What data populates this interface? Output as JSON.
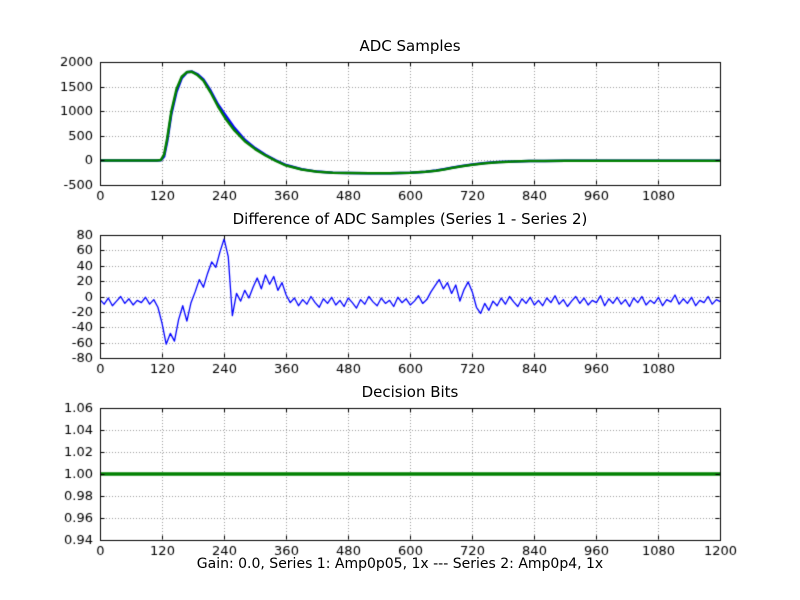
{
  "figure": {
    "caption": "Gain: 0.0, Series 1: Amp0p05, 1x --- Series 2: Amp0p4, 1x",
    "background": "#ffffff",
    "text_color": "#000000"
  },
  "chart_data": [
    {
      "type": "line",
      "title": "ADC Samples",
      "xlabel": "",
      "ylabel": "",
      "xlim": [
        0,
        1199
      ],
      "ylim": [
        -500,
        2000
      ],
      "xticks": [
        0,
        120,
        240,
        360,
        480,
        600,
        720,
        840,
        960,
        1080
      ],
      "xticklabels": [
        "0",
        "120",
        "240",
        "360",
        "480",
        "600",
        "720",
        "840",
        "960",
        "1080"
      ],
      "yticks": [
        -500,
        0,
        500,
        1000,
        1500,
        2000
      ],
      "yticklabels": [
        "-500",
        "0",
        "500",
        "1000",
        "1500",
        "2000"
      ],
      "grid": true,
      "grid_style": "dotted",
      "legend": false,
      "series": [
        {
          "name": "Series 1 (Amp0p05, 1x)",
          "color": "#0000ff",
          "linewidth": 2.5,
          "x": [
            0,
            40,
            80,
            110,
            118,
            124,
            130,
            138,
            148,
            158,
            168,
            178,
            188,
            200,
            214,
            228,
            244,
            260,
            280,
            300,
            320,
            340,
            360,
            390,
            420,
            450,
            480,
            520,
            560,
            600,
            630,
            650,
            665,
            680,
            700,
            720,
            745,
            770,
            800,
            830,
            860,
            900,
            960,
            1020,
            1080,
            1140,
            1199
          ],
          "y": [
            0,
            0,
            0,
            0,
            5,
            80,
            390,
            945,
            1395,
            1670,
            1790,
            1805,
            1755,
            1645,
            1415,
            1140,
            900,
            660,
            420,
            250,
            115,
            0,
            -95,
            -180,
            -228,
            -250,
            -258,
            -262,
            -260,
            -250,
            -230,
            -205,
            -178,
            -148,
            -112,
            -82,
            -52,
            -32,
            -20,
            -13,
            -10,
            -8,
            -8,
            -8,
            -8,
            -8,
            -8
          ]
        },
        {
          "name": "Series 2 (Amp0p4, 1x)",
          "color": "#008000",
          "linewidth": 2.5,
          "x": [
            0,
            40,
            80,
            110,
            118,
            124,
            130,
            138,
            148,
            158,
            168,
            178,
            188,
            200,
            214,
            228,
            244,
            260,
            280,
            300,
            320,
            340,
            360,
            390,
            420,
            450,
            480,
            520,
            560,
            600,
            630,
            650,
            665,
            680,
            700,
            720,
            745,
            770,
            800,
            830,
            860,
            900,
            960,
            1020,
            1080,
            1140,
            1199
          ],
          "y": [
            0,
            0,
            0,
            0,
            10,
            120,
            450,
            1000,
            1450,
            1700,
            1795,
            1800,
            1740,
            1620,
            1380,
            1100,
            830,
            610,
            390,
            230,
            100,
            -10,
            -105,
            -185,
            -230,
            -250,
            -258,
            -262,
            -260,
            -250,
            -232,
            -210,
            -185,
            -155,
            -120,
            -90,
            -58,
            -36,
            -22,
            -14,
            -10,
            -8,
            -8,
            -8,
            -8,
            -8,
            -8
          ]
        }
      ]
    },
    {
      "type": "line",
      "title": "Difference of ADC Samples (Series 1 - Series 2)",
      "xlabel": "",
      "ylabel": "",
      "xlim": [
        0,
        1199
      ],
      "ylim": [
        -80,
        80
      ],
      "xticks": [
        0,
        120,
        240,
        360,
        480,
        600,
        720,
        840,
        960,
        1080
      ],
      "xticklabels": [
        "0",
        "120",
        "240",
        "360",
        "480",
        "600",
        "720",
        "840",
        "960",
        "1080"
      ],
      "yticks": [
        -80,
        -60,
        -40,
        -20,
        0,
        20,
        40,
        60,
        80
      ],
      "yticklabels": [
        "-80",
        "-60",
        "-40",
        "-20",
        "0",
        "20",
        "40",
        "60",
        "80"
      ],
      "grid": true,
      "grid_style": "dotted",
      "legend": false,
      "series": [
        {
          "name": "Series 1 - Series 2",
          "color": "#0000ff",
          "linewidth": 1.3,
          "x": [
            0,
            8,
            16,
            24,
            32,
            40,
            48,
            56,
            64,
            72,
            80,
            88,
            96,
            104,
            112,
            120,
            128,
            136,
            144,
            152,
            160,
            168,
            176,
            184,
            192,
            200,
            208,
            216,
            224,
            232,
            240,
            248,
            256,
            264,
            272,
            280,
            288,
            296,
            304,
            312,
            320,
            328,
            336,
            344,
            352,
            360,
            368,
            376,
            384,
            392,
            400,
            408,
            416,
            424,
            432,
            440,
            448,
            456,
            464,
            472,
            480,
            488,
            496,
            504,
            512,
            520,
            528,
            536,
            544,
            552,
            560,
            568,
            576,
            584,
            592,
            600,
            608,
            616,
            624,
            632,
            640,
            648,
            656,
            664,
            672,
            680,
            688,
            696,
            704,
            712,
            720,
            728,
            736,
            744,
            752,
            760,
            768,
            776,
            784,
            792,
            800,
            808,
            816,
            824,
            832,
            840,
            848,
            856,
            864,
            872,
            880,
            888,
            896,
            904,
            912,
            920,
            928,
            936,
            944,
            952,
            960,
            968,
            976,
            984,
            992,
            1000,
            1008,
            1016,
            1024,
            1032,
            1040,
            1048,
            1056,
            1064,
            1072,
            1080,
            1088,
            1096,
            1104,
            1112,
            1120,
            1128,
            1136,
            1144,
            1152,
            1160,
            1168,
            1176,
            1184,
            1192,
            1200
          ],
          "y": [
            -4,
            -10,
            -2,
            -12,
            -6,
            0,
            -9,
            -3,
            -11,
            -5,
            -8,
            -1,
            -10,
            -4,
            -14,
            -35,
            -62,
            -48,
            -58,
            -30,
            -12,
            -32,
            -8,
            6,
            22,
            12,
            30,
            45,
            38,
            58,
            75,
            52,
            -25,
            4,
            -6,
            8,
            -2,
            12,
            24,
            10,
            28,
            16,
            26,
            8,
            18,
            2,
            -8,
            -2,
            -12,
            -4,
            -10,
            0,
            -8,
            -14,
            -3,
            -9,
            -1,
            -11,
            -5,
            -13,
            -2,
            -8,
            -15,
            -4,
            -10,
            0,
            -7,
            -12,
            -2,
            -9,
            -5,
            -13,
            -1,
            -8,
            -3,
            -11,
            -6,
            1,
            -9,
            -4,
            6,
            14,
            22,
            10,
            18,
            4,
            15,
            -6,
            9,
            19,
            6,
            -14,
            -22,
            -9,
            -18,
            -6,
            -12,
            -2,
            -10,
            0,
            -7,
            -13,
            -3,
            -9,
            -1,
            -11,
            -5,
            -12,
            -2,
            -8,
            1,
            -10,
            -4,
            -13,
            -6,
            0,
            -9,
            -2,
            -11,
            -5,
            -8,
            1,
            -12,
            -3,
            -9,
            -1,
            -10,
            -4,
            -13,
            -2,
            -8,
            0,
            -11,
            -5,
            -9,
            -1,
            -12,
            -4,
            -7,
            2,
            -10,
            -3,
            -9,
            -1,
            -12,
            -5,
            -8,
            0,
            -10,
            -4,
            -7
          ]
        }
      ]
    },
    {
      "type": "line",
      "title": "Decision Bits",
      "xlabel": "",
      "ylabel": "",
      "xlim": [
        0,
        1200
      ],
      "ylim": [
        0.94,
        1.06
      ],
      "xticks": [
        0,
        120,
        240,
        360,
        480,
        600,
        720,
        840,
        960,
        1080,
        1200
      ],
      "xticklabels": [
        "0",
        "120",
        "240",
        "360",
        "480",
        "600",
        "720",
        "840",
        "960",
        "1080",
        "1200"
      ],
      "yticks": [
        0.94,
        0.96,
        0.98,
        1.0,
        1.02,
        1.04,
        1.06
      ],
      "yticklabels": [
        "0.94",
        "0.96",
        "0.98",
        "1.00",
        "1.02",
        "1.04",
        "1.06"
      ],
      "grid": true,
      "grid_style": "dotted",
      "legend": false,
      "series": [
        {
          "name": "Decision Bits",
          "color": "#008000",
          "linewidth": 3.5,
          "x": [
            0,
            1200
          ],
          "y": [
            1.0,
            1.0
          ]
        }
      ]
    }
  ]
}
